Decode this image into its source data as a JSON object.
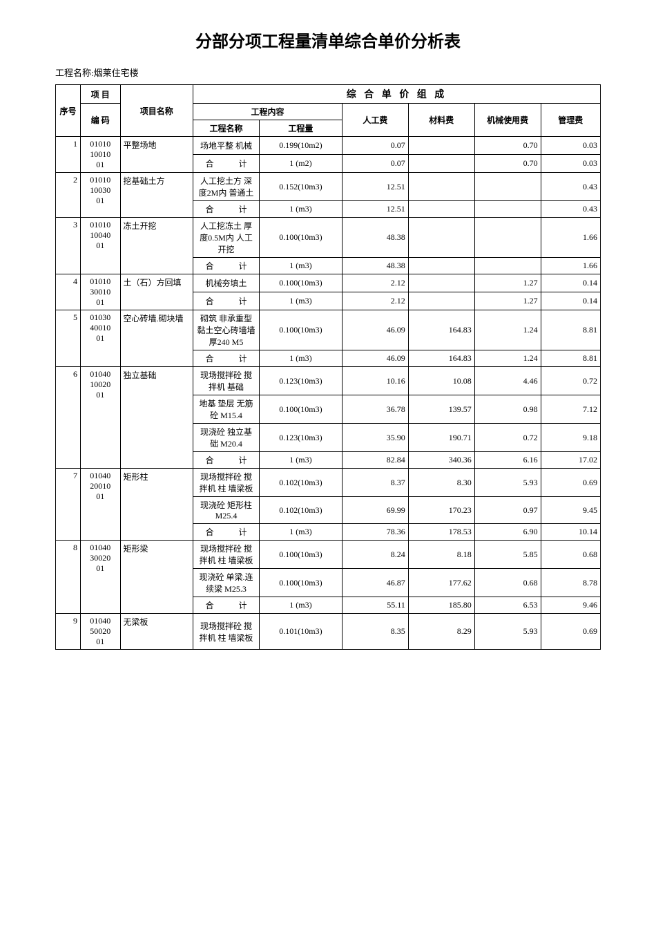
{
  "title": "分部分项工程量清单综合单价分析表",
  "project_name_label": "工程名称:",
  "project_name": "烟莱住宅楼",
  "headers": {
    "seq": "序号",
    "item": "项  目",
    "code": "编  码",
    "name": "项目名称",
    "content_group": "工程内容",
    "content_name": "工程名称",
    "content_qty": "工程量",
    "price_group": "综 合 单 价 组 成",
    "labor": "人工费",
    "material": "材料费",
    "machine": "机械使用费",
    "mgmt": "管理费"
  },
  "subtotal_label_a": "合",
  "subtotal_label_b": "计",
  "column_widths": {
    "seq": "30px",
    "code": "48px",
    "name": "88px",
    "cname": "80px",
    "cqty": "100px",
    "labor": "80px",
    "material": "80px",
    "machine": "80px",
    "mgmt": "72px"
  },
  "rows": [
    {
      "seq": "1",
      "code": "01010\n10010\n01",
      "name": "平整场地",
      "lines": [
        {
          "cname": "场地平整 机械",
          "cqty": "0.199(10m2)",
          "labor": "0.07",
          "material": "",
          "machine": "0.70",
          "mgmt": "0.03"
        }
      ],
      "subtotal": {
        "cqty": "1 (m2)",
        "labor": "0.07",
        "material": "",
        "machine": "0.70",
        "mgmt": "0.03"
      }
    },
    {
      "seq": "2",
      "code": "01010\n10030\n01",
      "name": "挖基础土方",
      "lines": [
        {
          "cname": "人工挖土方 深度2M内 普通土",
          "cqty": "0.152(10m3)",
          "labor": "12.51",
          "material": "",
          "machine": "",
          "mgmt": "0.43"
        }
      ],
      "subtotal": {
        "cqty": "1 (m3)",
        "labor": "12.51",
        "material": "",
        "machine": "",
        "mgmt": "0.43"
      }
    },
    {
      "seq": "3",
      "code": "01010\n10040\n01",
      "name": "冻土开挖",
      "lines": [
        {
          "cname": "人工挖冻土 厚度0.5M内 人工开挖",
          "cqty": "0.100(10m3)",
          "labor": "48.38",
          "material": "",
          "machine": "",
          "mgmt": "1.66"
        }
      ],
      "subtotal": {
        "cqty": "1 (m3)",
        "labor": "48.38",
        "material": "",
        "machine": "",
        "mgmt": "1.66"
      }
    },
    {
      "seq": "4",
      "code": "01010\n30010\n01",
      "name": "土（石）方回填",
      "lines": [
        {
          "cname": "机械夯填土",
          "cqty": "0.100(10m3)",
          "labor": "2.12",
          "material": "",
          "machine": "1.27",
          "mgmt": "0.14"
        }
      ],
      "subtotal": {
        "cqty": "1 (m3)",
        "labor": "2.12",
        "material": "",
        "machine": "1.27",
        "mgmt": "0.14"
      }
    },
    {
      "seq": "5",
      "code": "01030\n40010\n01",
      "name": "空心砖墙.砌块墙",
      "lines": [
        {
          "cname": "砌筑 非承重型黏土空心砖墙墙厚240 M5",
          "cqty": "0.100(10m3)",
          "labor": "46.09",
          "material": "164.83",
          "machine": "1.24",
          "mgmt": "8.81"
        }
      ],
      "subtotal": {
        "cqty": "1 (m3)",
        "labor": "46.09",
        "material": "164.83",
        "machine": "1.24",
        "mgmt": "8.81"
      }
    },
    {
      "seq": "6",
      "code": "01040\n10020\n01",
      "name": "独立基础",
      "lines": [
        {
          "cname": "现场搅拌砼 搅拌机 基础",
          "cqty": "0.123(10m3)",
          "labor": "10.16",
          "material": "10.08",
          "machine": "4.46",
          "mgmt": "0.72"
        },
        {
          "cname": "地基 垫层 无筋砼 M15.4",
          "cqty": "0.100(10m3)",
          "labor": "36.78",
          "material": "139.57",
          "machine": "0.98",
          "mgmt": "7.12"
        },
        {
          "cname": "现浇砼 独立基础 M20.4",
          "cqty": "0.123(10m3)",
          "labor": "35.90",
          "material": "190.71",
          "machine": "0.72",
          "mgmt": "9.18"
        }
      ],
      "subtotal": {
        "cqty": "1 (m3)",
        "labor": "82.84",
        "material": "340.36",
        "machine": "6.16",
        "mgmt": "17.02"
      }
    },
    {
      "seq": "7",
      "code": "01040\n20010\n01",
      "name": "矩形柱",
      "lines": [
        {
          "cname": "现场搅拌砼 搅拌机 柱 墙梁板",
          "cqty": "0.102(10m3)",
          "labor": "8.37",
          "material": "8.30",
          "machine": "5.93",
          "mgmt": "0.69"
        },
        {
          "cname": "现浇砼 矩形柱 M25.4",
          "cqty": "0.102(10m3)",
          "labor": "69.99",
          "material": "170.23",
          "machine": "0.97",
          "mgmt": "9.45"
        }
      ],
      "subtotal": {
        "cqty": "1 (m3)",
        "labor": "78.36",
        "material": "178.53",
        "machine": "6.90",
        "mgmt": "10.14"
      }
    },
    {
      "seq": "8",
      "code": "01040\n30020\n01",
      "name": "矩形梁",
      "lines": [
        {
          "cname": "现场搅拌砼 搅拌机 柱 墙梁板",
          "cqty": "0.100(10m3)",
          "labor": "8.24",
          "material": "8.18",
          "machine": "5.85",
          "mgmt": "0.68"
        },
        {
          "cname": "现浇砼 单梁.连续梁 M25.3",
          "cqty": "0.100(10m3)",
          "labor": "46.87",
          "material": "177.62",
          "machine": "0.68",
          "mgmt": "8.78"
        }
      ],
      "subtotal": {
        "cqty": "1 (m3)",
        "labor": "55.11",
        "material": "185.80",
        "machine": "6.53",
        "mgmt": "9.46"
      }
    },
    {
      "seq": "9",
      "code": "01040\n50020\n01",
      "name": "无梁板",
      "lines": [
        {
          "cname": "现场搅拌砼 搅拌机 柱 墙梁板",
          "cqty": "0.101(10m3)",
          "labor": "8.35",
          "material": "8.29",
          "machine": "5.93",
          "mgmt": "0.69"
        }
      ],
      "subtotal": null
    }
  ]
}
